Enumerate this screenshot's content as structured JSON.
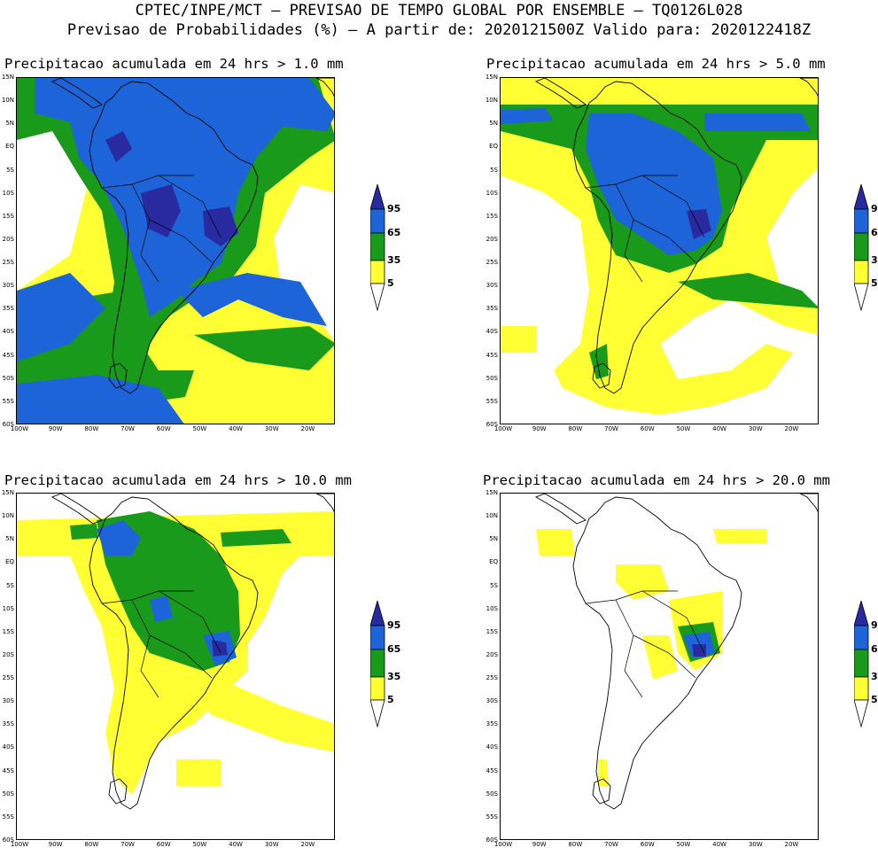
{
  "header": {
    "line1": "CPTEC/INPE/MCT – PREVISAO DE TEMPO GLOBAL POR ENSEMBLE – TQ0126L028",
    "line2": "Previsao de Probabilidades (%) –  A partir de: 2020121500Z  Valido para: 2020122418Z"
  },
  "axes": {
    "lat_labels": [
      "15N",
      "10N",
      "5N",
      "EQ",
      "5S",
      "10S",
      "15S",
      "20S",
      "25S",
      "30S",
      "35S",
      "40S",
      "45S",
      "50S",
      "55S",
      "60S"
    ],
    "lon_labels": [
      "100W",
      "90W",
      "80W",
      "70W",
      "60W",
      "50W",
      "40W",
      "30W",
      "20W"
    ]
  },
  "colorbar": {
    "labels": [
      "95",
      "65",
      "35",
      "5"
    ],
    "colors": {
      "c5": "#ffff33",
      "c35": "#1a9a1a",
      "c65": "#1d64d8",
      "c95": "#2a2aa0",
      "low": "#ffffff"
    }
  },
  "panels": [
    {
      "title": "Precipitacao acumulada em 24 hrs > 1.0 mm"
    },
    {
      "title": "Precipitacao acumulada em 24 hrs > 5.0 mm"
    },
    {
      "title": "Precipitacao acumulada em 24 hrs > 10.0 mm"
    },
    {
      "title": "Precipitacao acumulada em 24 hrs > 20.0 mm"
    }
  ]
}
